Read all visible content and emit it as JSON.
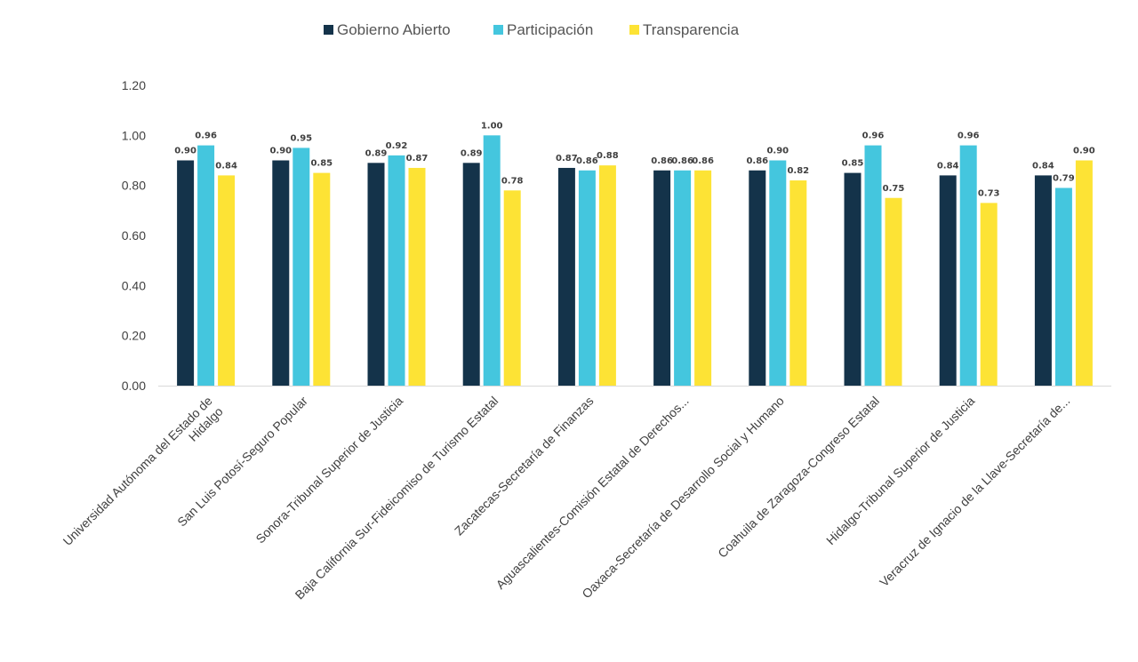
{
  "chart_data": {
    "type": "bar",
    "title": "",
    "xlabel": "",
    "ylabel": "",
    "ylim": [
      0,
      1.2
    ],
    "yticks": [
      "0.00",
      "0.20",
      "0.40",
      "0.60",
      "0.80",
      "1.00",
      "1.20"
    ],
    "grid": false,
    "legend_position": "top",
    "categories": [
      [
        "Universidad Autónoma del Estado de",
        "Hidalgo"
      ],
      [
        "San Luis Potosí-Seguro Popular"
      ],
      [
        "Sonora-Tribunal Superior de Justicia"
      ],
      [
        "Baja California Sur-Fideicomiso de Turismo Estatal"
      ],
      [
        "Zacatecas-Secretaría de Finanzas"
      ],
      [
        "Aguascalientes-Comisión Estatal de Derechos..."
      ],
      [
        "Oaxaca-Secretaría de Desarrollo Social y Humano"
      ],
      [
        "Coahuila de Zaragoza-Congreso Estatal"
      ],
      [
        "Hidalgo-Tribunal Superior de Justicia"
      ],
      [
        "Veracruz de Ignacio de la Llave-Secretaría de..."
      ]
    ],
    "series": [
      {
        "name": "Gobierno Abierto",
        "color": "#14334a",
        "values": [
          0.9,
          0.9,
          0.89,
          0.89,
          0.87,
          0.86,
          0.86,
          0.85,
          0.84,
          0.84
        ],
        "labels": [
          "0.90",
          "0.90",
          "0.89",
          "0.89",
          "0.87",
          "0.86",
          "0.86",
          "0.85",
          "0.84",
          "0.84"
        ]
      },
      {
        "name": "Participación",
        "color": "#44c6de",
        "values": [
          0.96,
          0.95,
          0.92,
          1.0,
          0.86,
          0.86,
          0.9,
          0.96,
          0.96,
          0.79
        ],
        "labels": [
          "0.96",
          "0.95",
          "0.92",
          "1.00",
          "0.86",
          "0.86",
          "0.90",
          "0.96",
          "0.96",
          "0.79"
        ]
      },
      {
        "name": "Transparencia",
        "color": "#fde335",
        "values": [
          0.84,
          0.85,
          0.87,
          0.78,
          0.88,
          0.86,
          0.82,
          0.75,
          0.73,
          0.9
        ],
        "labels": [
          "0.84",
          "0.85",
          "0.87",
          "0.78",
          "0.88",
          "0.86",
          "0.82",
          "0.75",
          "0.73",
          "0.90"
        ]
      }
    ]
  }
}
